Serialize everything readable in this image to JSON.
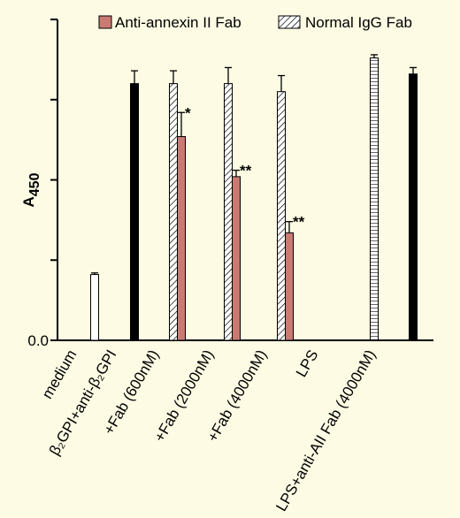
{
  "chart_data": {
    "type": "bar",
    "ylabel_main": "A",
    "ylabel_sub": "450",
    "categories": [
      "medium",
      "β₂GPI+anti-β₂GPI",
      "+Fab (600nM)",
      "+Fab (2000nM)",
      "+Fab (4000nM)",
      "LPS",
      "LPS+anti-AII Fab (4000nM)"
    ],
    "ylim": [
      0,
      2.0
    ],
    "yticks": [
      {
        "value": 0,
        "label": "0.0"
      }
    ],
    "minor_yticks": [
      0.5,
      1.0,
      1.5,
      2.0
    ],
    "series": [
      {
        "name": "Anti-annexin II Fab",
        "color": "#c97b72",
        "values": [
          null,
          null,
          1.27,
          1.02,
          0.67,
          null,
          null
        ],
        "errors": [
          null,
          null,
          0.15,
          0.04,
          0.07,
          null,
          null
        ]
      },
      {
        "name": "Normal IgG Fab",
        "color": "hatch-diag",
        "values": [
          null,
          null,
          1.6,
          1.6,
          1.55,
          null,
          null
        ],
        "errors": [
          null,
          null,
          0.08,
          0.1,
          0.1,
          null,
          null
        ]
      },
      {
        "color": "#ffffff",
        "values": [
          0.41,
          null,
          null,
          null,
          null,
          null,
          null
        ],
        "errors": [
          0.01,
          null,
          null,
          null,
          null,
          null,
          null
        ]
      },
      {
        "color": "#000000",
        "values": [
          null,
          1.6,
          null,
          null,
          null,
          null,
          1.66
        ],
        "errors": [
          null,
          0.08,
          null,
          null,
          null,
          null,
          0.04
        ]
      },
      {
        "color": "hatch-horiz",
        "values": [
          null,
          null,
          null,
          null,
          null,
          null,
          1.76
        ],
        "errors": [
          null,
          null,
          null,
          null,
          null,
          null,
          0.02
        ]
      }
    ],
    "annotations": [
      "*",
      "**",
      "**"
    ]
  }
}
